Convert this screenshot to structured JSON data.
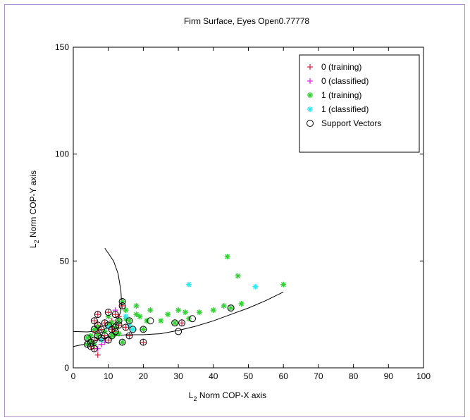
{
  "chart_data": {
    "type": "scatter",
    "title": "Firm Surface, Eyes Open0.77778",
    "xlabel_prefix": "L",
    "xlabel_sub": "2",
    "xlabel_rest": " Norm COP-X axis",
    "ylabel_prefix": "L",
    "ylabel_sub": "2",
    "ylabel_rest": " Norm COP-Y axis",
    "xlim": [
      0,
      100
    ],
    "ylim": [
      0,
      150
    ],
    "xticks": [
      "0",
      "10",
      "20",
      "30",
      "40",
      "50",
      "60",
      "70",
      "80",
      "90",
      "100"
    ],
    "yticks": [
      "0",
      "50",
      "100",
      "150"
    ],
    "grid": false,
    "legend_position": "top-right",
    "legend": [
      {
        "label": "0 (training)",
        "marker": "plus",
        "color": "#cc1f3a"
      },
      {
        "label": "0 (classified)",
        "marker": "plus",
        "color": "#e020e0"
      },
      {
        "label": "1 (training)",
        "marker": "star",
        "color": "#33d033"
      },
      {
        "label": "1 (classified)",
        "marker": "star",
        "color": "#33e6ee"
      },
      {
        "label": "Support Vectors",
        "marker": "circle",
        "color": "#000000"
      }
    ],
    "series": [
      {
        "name": "0 (training)",
        "marker": "plus",
        "color": "#cc1f3a",
        "points": [
          [
            5,
            10
          ],
          [
            6,
            13
          ],
          [
            6,
            22
          ],
          [
            7,
            25
          ],
          [
            7,
            20
          ],
          [
            7,
            16
          ],
          [
            8,
            14
          ],
          [
            8,
            18
          ],
          [
            9,
            21
          ],
          [
            10,
            26
          ],
          [
            11,
            18
          ],
          [
            12,
            25
          ],
          [
            13,
            20
          ],
          [
            14,
            29
          ],
          [
            15,
            19
          ],
          [
            16,
            15
          ],
          [
            20,
            12
          ],
          [
            31,
            21
          ],
          [
            7,
            6
          ],
          [
            9,
            15
          ],
          [
            10,
            13
          ],
          [
            12,
            17
          ],
          [
            5,
            12
          ],
          [
            6,
            9
          ],
          [
            8,
            11
          ],
          [
            11,
            22
          ],
          [
            13,
            24
          ],
          [
            6,
            17
          ]
        ]
      },
      {
        "name": "0 (classified)",
        "marker": "plus",
        "color": "#e020e0",
        "points": [
          [
            7,
            9
          ],
          [
            8,
            11
          ],
          [
            9,
            12
          ],
          [
            12,
            27
          ],
          [
            7,
            14
          ]
        ]
      },
      {
        "name": "1 (training)",
        "marker": "star",
        "color": "#33d033",
        "points": [
          [
            4,
            11
          ],
          [
            4,
            14
          ],
          [
            5,
            12
          ],
          [
            6,
            18
          ],
          [
            7,
            15
          ],
          [
            9,
            17
          ],
          [
            10,
            20
          ],
          [
            11,
            15
          ],
          [
            11,
            21
          ],
          [
            12,
            19
          ],
          [
            13,
            22
          ],
          [
            14,
            31
          ],
          [
            14,
            12
          ],
          [
            15,
            27
          ],
          [
            16,
            22
          ],
          [
            17,
            18
          ],
          [
            18,
            25
          ],
          [
            18,
            29
          ],
          [
            20,
            18
          ],
          [
            21,
            22
          ],
          [
            22,
            27
          ],
          [
            27,
            25
          ],
          [
            30,
            27
          ],
          [
            32,
            26
          ],
          [
            33,
            23
          ],
          [
            36,
            26
          ],
          [
            40,
            27
          ],
          [
            43,
            29
          ],
          [
            44,
            52
          ],
          [
            45,
            28
          ],
          [
            47,
            43
          ],
          [
            48,
            30
          ],
          [
            60,
            39
          ],
          [
            5,
            15
          ],
          [
            6,
            11
          ],
          [
            7,
            19
          ],
          [
            8,
            13
          ],
          [
            12,
            16
          ],
          [
            10,
            24
          ],
          [
            13,
            16
          ],
          [
            15,
            23
          ],
          [
            19,
            24
          ],
          [
            29,
            21
          ],
          [
            25,
            22
          ]
        ]
      },
      {
        "name": "1 (classified)",
        "marker": "star",
        "color": "#33e6ee",
        "points": [
          [
            10,
            19
          ],
          [
            15,
            24
          ],
          [
            16,
            20
          ],
          [
            17,
            18
          ],
          [
            33,
            39
          ],
          [
            52,
            38
          ],
          [
            8,
            13
          ]
        ]
      },
      {
        "name": "Support Vectors",
        "marker": "circle",
        "color": "#000000",
        "points": [
          [
            4,
            11
          ],
          [
            4,
            14
          ],
          [
            5,
            10
          ],
          [
            5,
            12
          ],
          [
            6,
            9
          ],
          [
            6,
            13
          ],
          [
            6,
            18
          ],
          [
            6,
            22
          ],
          [
            7,
            15
          ],
          [
            7,
            20
          ],
          [
            7,
            25
          ],
          [
            8,
            14
          ],
          [
            8,
            18
          ],
          [
            9,
            21
          ],
          [
            9,
            15
          ],
          [
            10,
            13
          ],
          [
            10,
            20
          ],
          [
            10,
            26
          ],
          [
            11,
            15
          ],
          [
            11,
            18
          ],
          [
            12,
            17
          ],
          [
            12,
            19
          ],
          [
            12,
            25
          ],
          [
            13,
            22
          ],
          [
            13,
            20
          ],
          [
            14,
            29
          ],
          [
            14,
            31
          ],
          [
            14,
            12
          ],
          [
            15,
            19
          ],
          [
            16,
            15
          ],
          [
            16,
            22
          ],
          [
            17,
            18
          ],
          [
            20,
            12
          ],
          [
            20,
            18
          ],
          [
            22,
            22
          ],
          [
            29,
            21
          ],
          [
            30,
            17
          ],
          [
            31,
            21
          ],
          [
            34,
            23
          ],
          [
            45,
            28
          ]
        ]
      }
    ],
    "curves": [
      {
        "name": "boundary-lower",
        "points": [
          [
            0,
            10
          ],
          [
            3,
            11
          ],
          [
            6,
            12.5
          ],
          [
            10,
            14.5
          ],
          [
            15,
            15.5
          ],
          [
            20,
            15.5
          ],
          [
            25,
            16
          ],
          [
            30,
            17.5
          ],
          [
            35,
            19.5
          ],
          [
            40,
            22
          ],
          [
            45,
            25
          ],
          [
            50,
            28
          ],
          [
            55,
            31.5
          ],
          [
            60,
            35.5
          ]
        ]
      },
      {
        "name": "boundary-upper",
        "points": [
          [
            0,
            17
          ],
          [
            4,
            16.8
          ],
          [
            8,
            17.5
          ],
          [
            11,
            19.5
          ],
          [
            12.5,
            22
          ],
          [
            13.5,
            26
          ],
          [
            13.8,
            30
          ],
          [
            13.6,
            36
          ],
          [
            12.8,
            44
          ],
          [
            11.5,
            50
          ],
          [
            9,
            56
          ]
        ]
      }
    ]
  }
}
